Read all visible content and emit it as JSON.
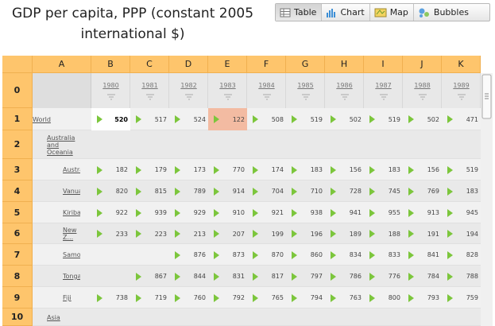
{
  "header": {
    "title": "GDP per capita, PPP (constant 2005 international $)",
    "views": [
      "Table",
      "Chart",
      "Map",
      "Bubbles"
    ]
  },
  "table": {
    "columns": [
      "A",
      "B",
      "C",
      "D",
      "E",
      "F",
      "G",
      "H",
      "I",
      "J",
      "K"
    ],
    "row_numbers": [
      "0",
      "1",
      "2",
      "3",
      "4",
      "5",
      "6",
      "7",
      "8",
      "9",
      "10"
    ],
    "years": [
      "1980",
      "1981",
      "1982",
      "1983",
      "1984",
      "1985",
      "1986",
      "1987",
      "1988",
      "1989"
    ],
    "rows": [
      {
        "label": "World",
        "values": [
          "520",
          "517",
          "524",
          "122",
          "508",
          "519",
          "502",
          "519",
          "502",
          "471"
        ]
      },
      {
        "label": "Australia and Oceania",
        "values": [
          null,
          null,
          null,
          null,
          null,
          null,
          null,
          null,
          null,
          null
        ]
      },
      {
        "label": "Australia",
        "values": [
          "182",
          "179",
          "173",
          "770",
          "174",
          "183",
          "156",
          "183",
          "156",
          "519"
        ]
      },
      {
        "label": "Vanuatu",
        "values": [
          "820",
          "815",
          "789",
          "914",
          "704",
          "710",
          "728",
          "745",
          "769",
          "183"
        ]
      },
      {
        "label": "Kiribati",
        "values": [
          "922",
          "939",
          "929",
          "910",
          "921",
          "938",
          "941",
          "955",
          "913",
          "945"
        ]
      },
      {
        "label": "New Z...",
        "values": [
          "233",
          "223",
          "213",
          "207",
          "199",
          "196",
          "189",
          "188",
          "191",
          "194"
        ]
      },
      {
        "label": "Samoa",
        "values": [
          null,
          null,
          "876",
          "873",
          "870",
          "860",
          "834",
          "833",
          "841",
          "828"
        ]
      },
      {
        "label": "Tonga",
        "values": [
          null,
          "867",
          "844",
          "831",
          "817",
          "797",
          "786",
          "776",
          "784",
          "788"
        ]
      },
      {
        "label": "Fiji",
        "values": [
          "738",
          "719",
          "760",
          "792",
          "765",
          "794",
          "763",
          "800",
          "793",
          "759"
        ]
      },
      {
        "label": "Asia",
        "values": [
          null,
          null,
          null,
          null,
          null,
          null,
          null,
          null,
          null,
          null
        ]
      }
    ]
  }
}
